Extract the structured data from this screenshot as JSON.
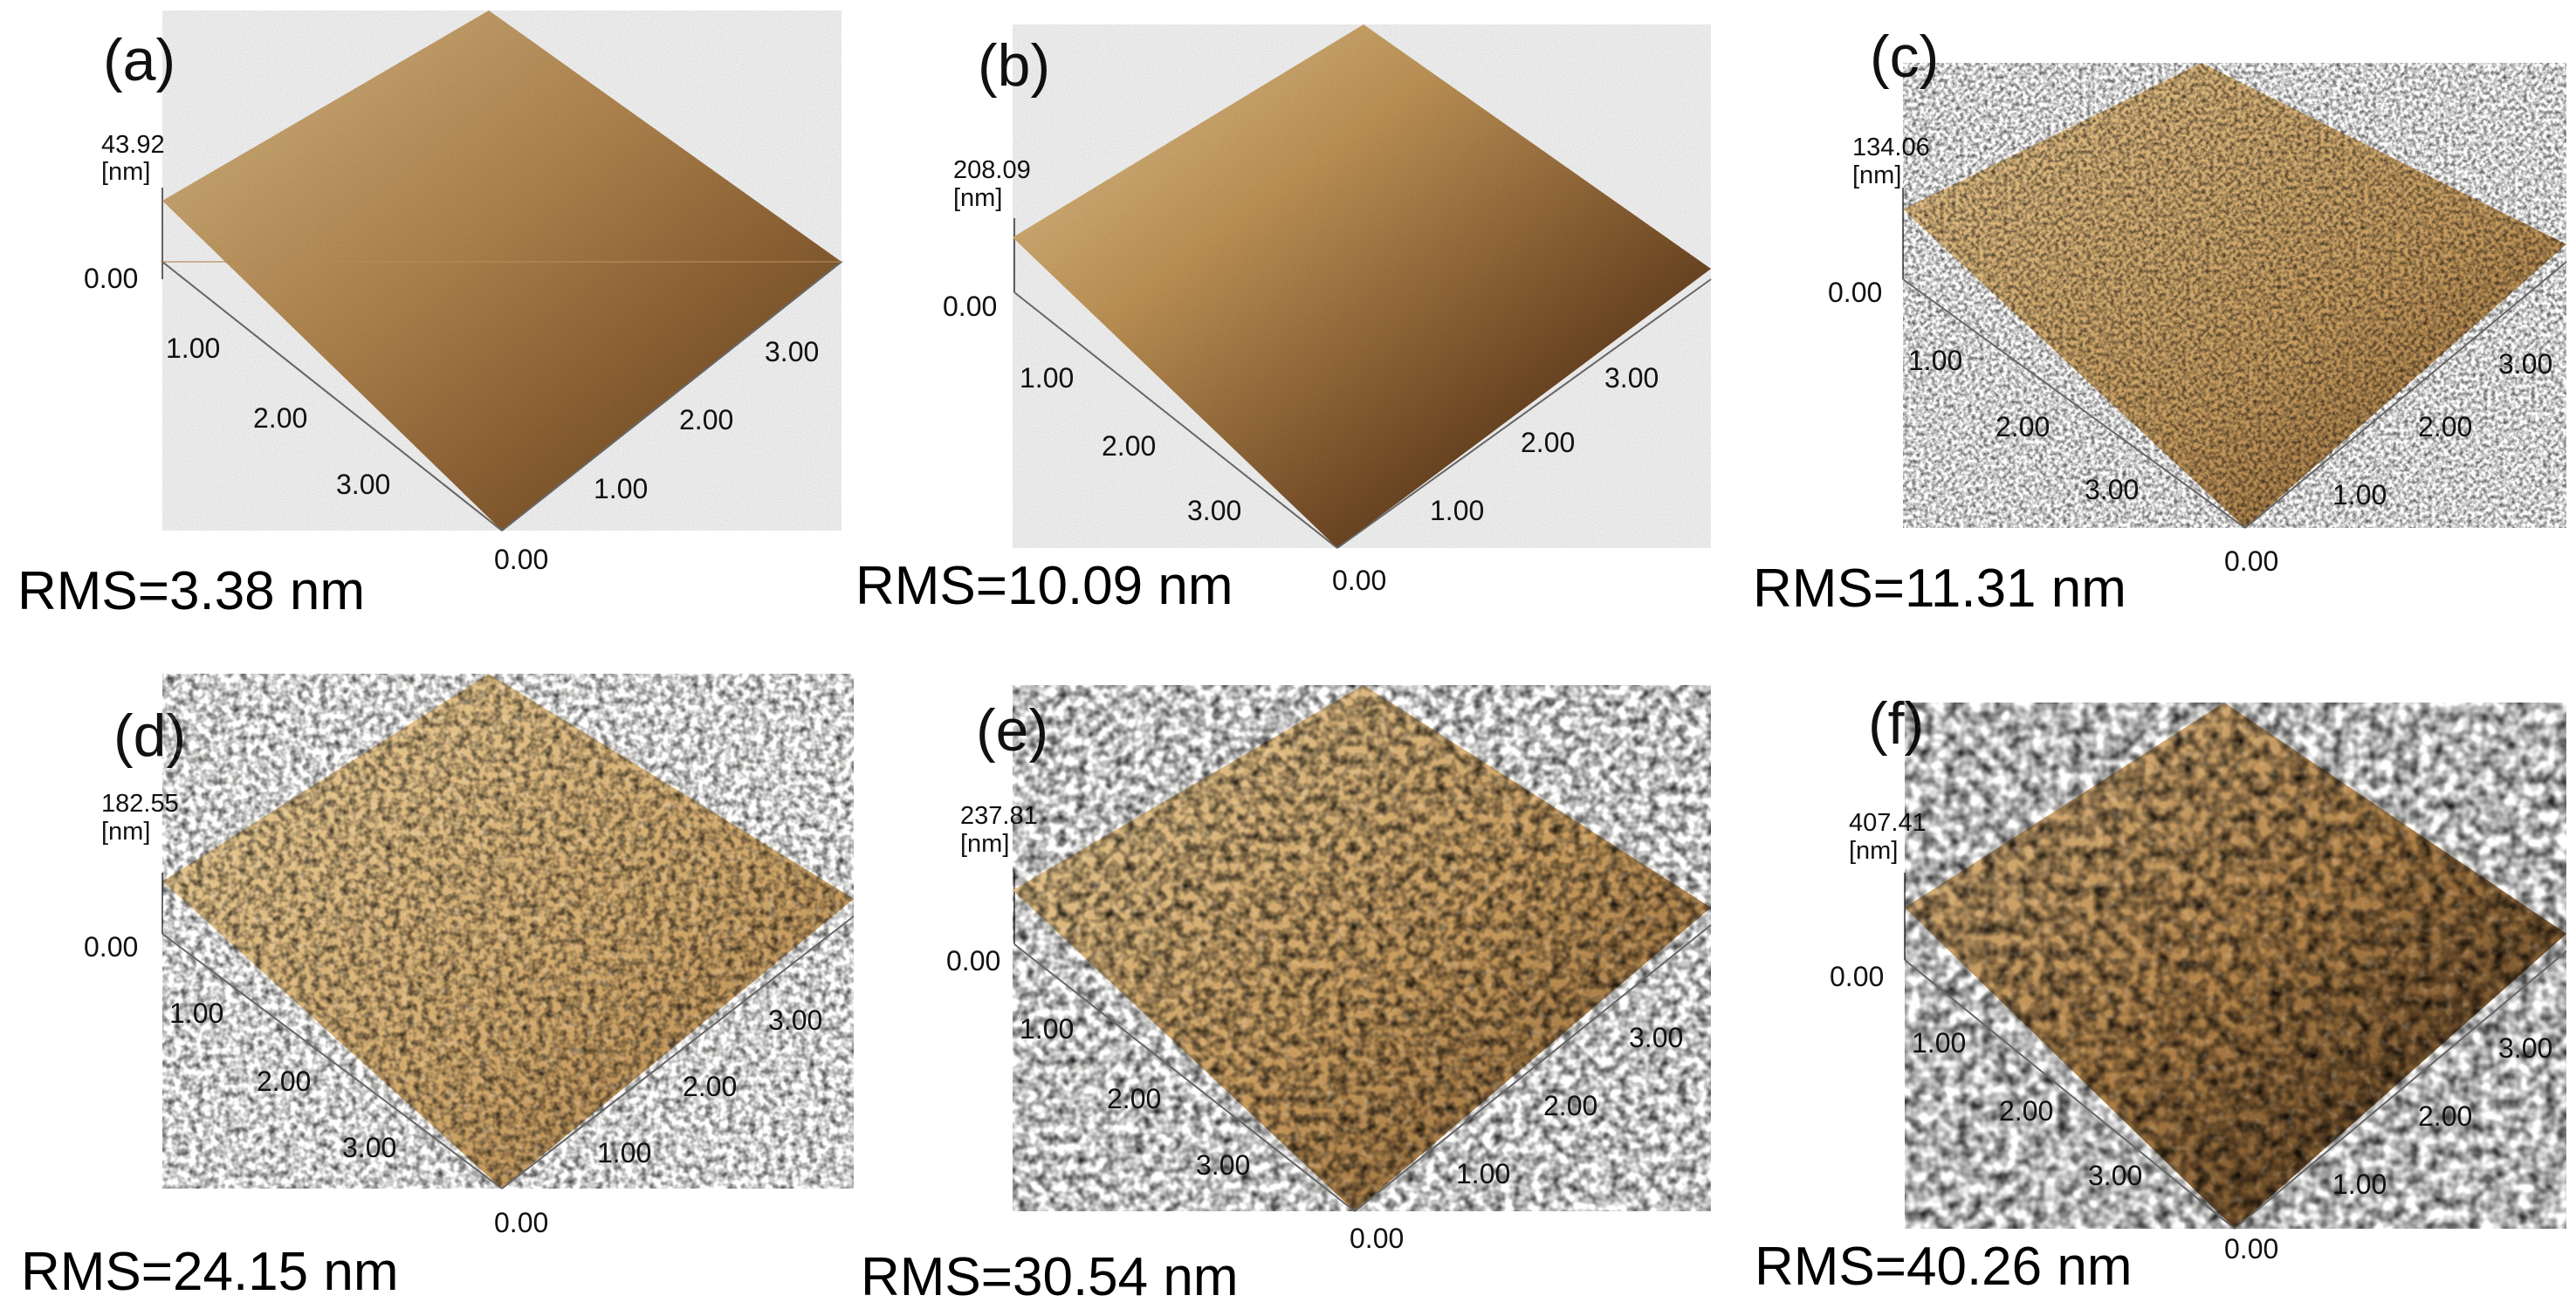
{
  "figure": {
    "panels": [
      {
        "label": "(a)",
        "z_max": "43.92",
        "z_unit": "[nm]",
        "z_min": "0.00",
        "left_ticks": [
          "1.00",
          "2.00",
          "3.00"
        ],
        "right_ticks": [
          "1.00",
          "2.00",
          "3.00"
        ],
        "origin": "0.00",
        "rms": "RMS=3.38 nm",
        "roughness": "smooth"
      },
      {
        "label": "(b)",
        "z_max": "208.09",
        "z_unit": "[nm]",
        "z_min": "0.00",
        "left_ticks": [
          "1.00",
          "2.00",
          "3.00"
        ],
        "right_ticks": [
          "1.00",
          "2.00",
          "3.00"
        ],
        "origin": "0.00",
        "rms": "RMS=10.09 nm",
        "roughness": "smooth"
      },
      {
        "label": "(c)",
        "z_max": "134.06",
        "z_unit": "[nm]",
        "z_min": "0.00",
        "left_ticks": [
          "1.00",
          "2.00",
          "3.00"
        ],
        "right_ticks": [
          "1.00",
          "2.00",
          "3.00"
        ],
        "origin": "0.00",
        "rms": "RMS=11.31 nm",
        "roughness": "fine grains"
      },
      {
        "label": "(d)",
        "z_max": "182.55",
        "z_unit": "[nm]",
        "z_min": "0.00",
        "left_ticks": [
          "1.00",
          "2.00",
          "3.00"
        ],
        "right_ticks": [
          "1.00",
          "2.00",
          "3.00"
        ],
        "origin": "0.00",
        "rms": "RMS=24.15 nm",
        "roughness": "medium grains"
      },
      {
        "label": "(e)",
        "z_max": "237.81",
        "z_unit": "[nm]",
        "z_min": "0.00",
        "left_ticks": [
          "1.00",
          "2.00",
          "3.00"
        ],
        "right_ticks": [
          "1.00",
          "2.00",
          "3.00"
        ],
        "origin": "0.00",
        "rms": "RMS=30.54 nm",
        "roughness": "coarse grains"
      },
      {
        "label": "(f)",
        "z_max": "407.41",
        "z_unit": "[nm]",
        "z_min": "0.00",
        "left_ticks": [
          "1.00",
          "2.00",
          "3.00"
        ],
        "right_ticks": [
          "1.00",
          "2.00",
          "3.00"
        ],
        "origin": "0.00",
        "rms": "RMS=40.26 nm",
        "roughness": "large grains"
      }
    ],
    "colors": {
      "surface_light": "#e6c58a",
      "surface_mid": "#b88a4c",
      "surface_dark": "#3a2410",
      "axis": "#666666"
    }
  }
}
